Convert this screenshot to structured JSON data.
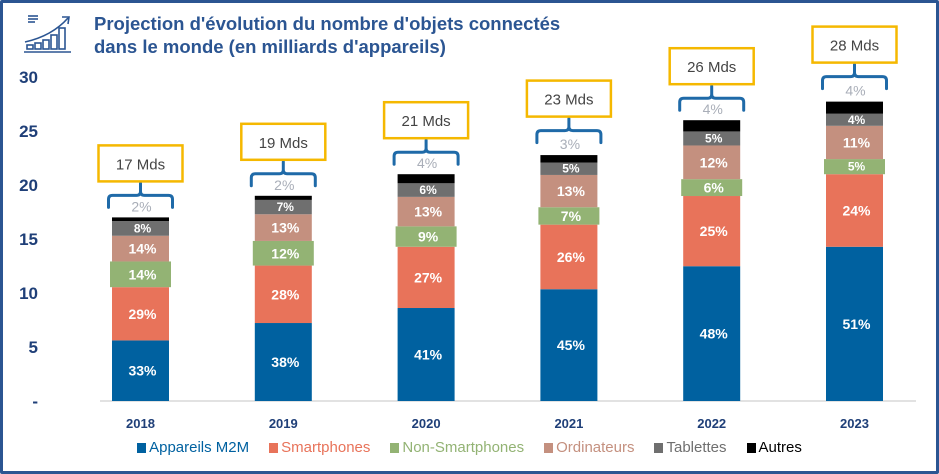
{
  "header": {
    "title_line1": "Projection d'évolution du nombre d'objets connectés",
    "title_line2": "dans le monde (en milliards d'appareils)",
    "icon": "growth-chart-icon"
  },
  "chart_data": {
    "type": "bar",
    "stacked": true,
    "title": "Projection d'évolution du nombre d'objets connectés dans le monde (en milliards d'appareils)",
    "xlabel": "",
    "ylabel": "",
    "ylim": [
      0,
      30
    ],
    "yticks": [
      {
        "value": 0,
        "label": "-"
      },
      {
        "value": 5,
        "label": "5"
      },
      {
        "value": 10,
        "label": "10"
      },
      {
        "value": 15,
        "label": "15"
      },
      {
        "value": 20,
        "label": "20"
      },
      {
        "value": 25,
        "label": "25"
      },
      {
        "value": 30,
        "label": "30"
      }
    ],
    "grid": false,
    "legend_position": "bottom",
    "categories": [
      "2018",
      "2019",
      "2020",
      "2021",
      "2022",
      "2023"
    ],
    "totals": [
      17,
      19,
      21,
      23,
      26,
      28
    ],
    "total_labels": [
      "17 Mds",
      "19 Mds",
      "21 Mds",
      "23 Mds",
      "26 Mds",
      "28 Mds"
    ],
    "series": [
      {
        "name": "Appareils M2M",
        "color": "#0061a0",
        "percent": [
          33,
          38,
          41,
          45,
          48,
          51
        ]
      },
      {
        "name": "Smartphones",
        "color": "#e8735a",
        "percent": [
          29,
          28,
          27,
          26,
          25,
          24
        ]
      },
      {
        "name": "Non-Smartphones",
        "color": "#93b374",
        "percent": [
          14,
          12,
          9,
          7,
          6,
          5
        ]
      },
      {
        "name": "Ordinateurs",
        "color": "#c4907f",
        "percent": [
          14,
          13,
          13,
          13,
          12,
          11
        ]
      },
      {
        "name": "Tablettes",
        "color": "#6f6f6f",
        "percent": [
          8,
          7,
          6,
          5,
          5,
          4
        ]
      },
      {
        "name": "Autres",
        "color": "#000000",
        "percent": [
          2,
          2,
          4,
          3,
          4,
          4
        ]
      }
    ],
    "legend_label_colors": [
      "#0061a0",
      "#e8735a",
      "#93b374",
      "#c4907f",
      "#6f6f6f",
      "#000000"
    ],
    "accent_colors": {
      "box_border": "#f5b800",
      "brace": "#1f6aa8",
      "axis_text": "#1f3f78",
      "frame": "#2b5592"
    }
  }
}
